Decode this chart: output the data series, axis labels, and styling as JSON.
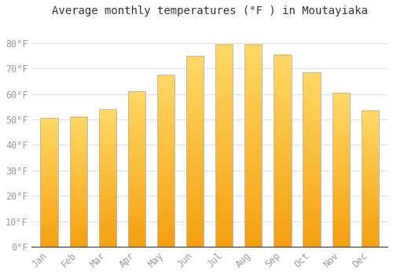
{
  "title": "Average monthly temperatures (°F ) in Moutayiaka",
  "months": [
    "Jan",
    "Feb",
    "Mar",
    "Apr",
    "May",
    "Jun",
    "Jul",
    "Aug",
    "Sep",
    "Oct",
    "Nov",
    "Dec"
  ],
  "values": [
    50.5,
    51.0,
    54.0,
    61.0,
    67.5,
    75.0,
    79.5,
    79.5,
    75.5,
    68.5,
    60.5,
    53.5
  ],
  "bar_color_top": "#FFD966",
  "bar_color_bottom": "#F4A010",
  "bar_edge_color": "#BBBBBB",
  "ylim": [
    0,
    88
  ],
  "yticks": [
    0,
    10,
    20,
    30,
    40,
    50,
    60,
    70,
    80
  ],
  "ytick_labels": [
    "0°F",
    "10°F",
    "20°F",
    "30°F",
    "40°F",
    "50°F",
    "60°F",
    "70°F",
    "80°F"
  ],
  "background_color": "#FFFFFF",
  "grid_color": "#DDDDDD",
  "title_fontsize": 10,
  "tick_fontsize": 8.5,
  "tick_color": "#999999",
  "bar_width": 0.6,
  "figsize": [
    5.0,
    3.5
  ],
  "dpi": 100
}
